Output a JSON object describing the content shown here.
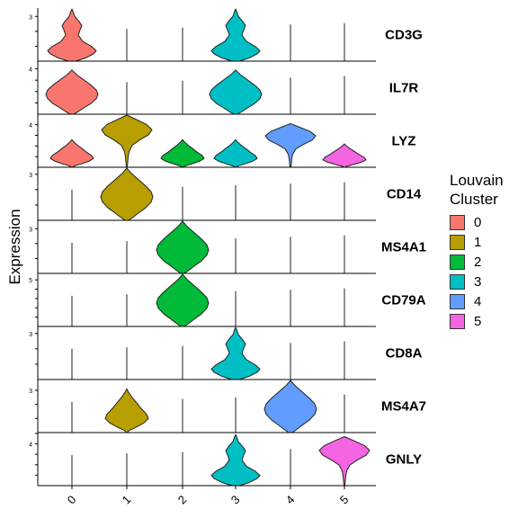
{
  "chart_data": {
    "type": "violin",
    "ylabel": "Expression",
    "xlabel": "",
    "categories": [
      "0",
      "1",
      "2",
      "3",
      "4",
      "5"
    ],
    "legend": {
      "title": "Louvain\nCluster",
      "placement": "right",
      "items": [
        {
          "label": "0",
          "color": "#F8766D"
        },
        {
          "label": "1",
          "color": "#B79F00"
        },
        {
          "label": "2",
          "color": "#00BA38"
        },
        {
          "label": "3",
          "color": "#00BFC4"
        },
        {
          "label": "4",
          "color": "#619CFF"
        },
        {
          "label": "5",
          "color": "#F564E3"
        }
      ]
    },
    "panels": [
      {
        "gene": "CD3G",
        "ylim": [
          0,
          3.5
        ],
        "tick": "3",
        "tick_value": 3,
        "violins": {
          "0": {
            "max": 3.5,
            "shape": "bottom_heavy"
          },
          "3": {
            "max": 3.5,
            "shape": "bottom_heavy"
          }
        }
      },
      {
        "gene": "IL7R",
        "ylim": [
          0,
          4.6
        ],
        "tick": "4",
        "tick_value": 4,
        "violins": {
          "0": {
            "max": 3.9,
            "shape": "wide_mid"
          },
          "3": {
            "max": 3.9,
            "shape": "wide_mid"
          }
        }
      },
      {
        "gene": "LYZ",
        "ylim": [
          0,
          4.9
        ],
        "tick": "4",
        "tick_value": 4,
        "violins": {
          "0": {
            "max": 2.6,
            "shape": "bulb"
          },
          "1": {
            "max": 4.9,
            "shape": "top_bulb"
          },
          "2": {
            "max": 2.6,
            "shape": "bulb"
          },
          "3": {
            "max": 2.6,
            "shape": "bulb"
          },
          "4": {
            "max": 4.1,
            "shape": "top_bulb"
          },
          "5": {
            "max": 2.2,
            "shape": "bulb"
          }
        }
      },
      {
        "gene": "CD14",
        "ylim": [
          0,
          3.4
        ],
        "tick": "3",
        "tick_value": 3,
        "violins": {
          "1": {
            "max": 3.4,
            "shape": "wide_mid"
          }
        }
      },
      {
        "gene": "MS4A1",
        "ylim": [
          0,
          3.5
        ],
        "tick": "3",
        "tick_value": 3,
        "violins": {
          "2": {
            "max": 3.5,
            "shape": "wide_mid"
          }
        }
      },
      {
        "gene": "CD79A",
        "ylim": [
          0,
          5.6
        ],
        "tick": "5",
        "tick_value": 5,
        "violins": {
          "2": {
            "max": 5.6,
            "shape": "wide_mid"
          }
        }
      },
      {
        "gene": "CD8A",
        "ylim": [
          0,
          3.4
        ],
        "tick": "3",
        "tick_value": 3,
        "violins": {
          "3": {
            "max": 3.4,
            "shape": "bottom_heavy"
          }
        }
      },
      {
        "gene": "MS4A7",
        "ylim": [
          0,
          3.7
        ],
        "tick": "3",
        "tick_value": 3,
        "violins": {
          "1": {
            "max": 3.1,
            "shape": "bulb"
          },
          "4": {
            "max": 3.7,
            "shape": "wide_mid"
          }
        }
      },
      {
        "gene": "GNLY",
        "ylim": [
          0,
          5.0
        ],
        "tick": "4",
        "tick_value": 4,
        "violins": {
          "3": {
            "max": 4.9,
            "shape": "bottom_heavy"
          },
          "5": {
            "max": 4.7,
            "shape": "top_bulb"
          }
        }
      }
    ]
  }
}
